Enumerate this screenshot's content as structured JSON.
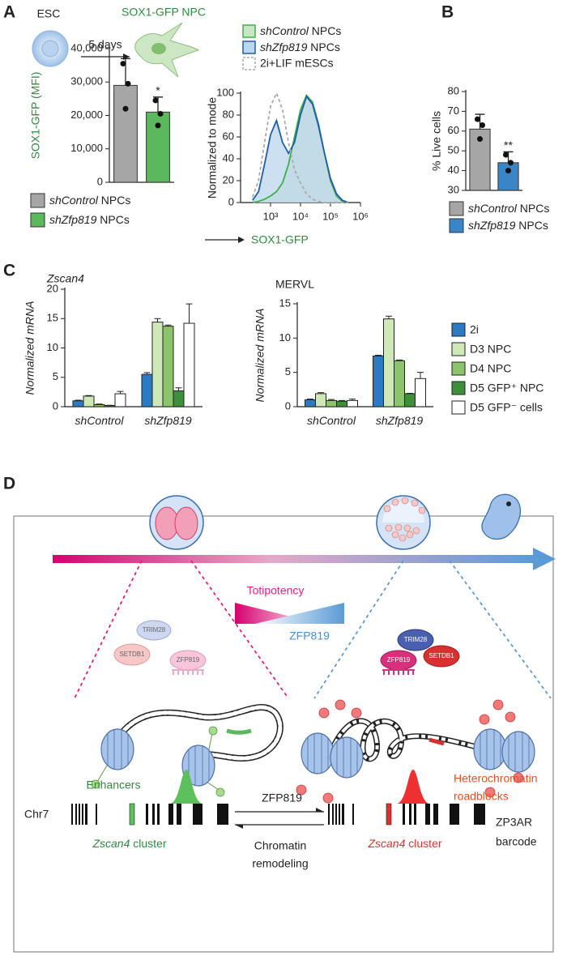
{
  "panel_labels": [
    "A",
    "B",
    "C",
    "D"
  ],
  "schematic": {
    "from": "ESC",
    "step": "5 days",
    "to": "SOX1-GFP NPC"
  },
  "chart_data": [
    {
      "type": "bar",
      "ylabel": "SOX1-GFP (MFI)",
      "ylabel_color": "#2e8b3e",
      "categories": [
        "shControl NPCs",
        "shZfp819 NPCs"
      ],
      "values": [
        29000,
        21000
      ],
      "errors": [
        8000,
        4500
      ],
      "points": [
        [
          35500,
          29500,
          22000
        ],
        [
          24500,
          20500,
          17000
        ]
      ],
      "colors": [
        "#a6a6a6",
        "#5cb85c"
      ],
      "significance": [
        null,
        "*"
      ],
      "ylim": [
        0,
        40000
      ],
      "yticks": [
        0,
        {
          "value": 10000,
          "label": "10,000"
        },
        {
          "value": 20000,
          "label": "20,000"
        },
        {
          "value": 30000,
          "label": "30,000"
        },
        {
          "value": 40000,
          "label": "40,000"
        }
      ]
    },
    {
      "type": "line",
      "ylabel": "Normalized to mode",
      "xlabel": "SOX1-GFP",
      "xlabel_color": "#2e8b3e",
      "xscale": "log",
      "x": [
        251,
        398,
        631,
        1000,
        1585,
        2512,
        3981,
        6310,
        10000,
        15849,
        25119,
        39811,
        63096,
        100000,
        158489,
        251189,
        398107
      ],
      "series": [
        {
          "name": "shControl NPCs",
          "color": "#3cb04a",
          "fill": "#c8e6c0",
          "dash": false,
          "values": [
            0,
            1,
            3,
            6,
            10,
            18,
            35,
            60,
            85,
            98,
            92,
            72,
            45,
            20,
            6,
            1,
            0
          ]
        },
        {
          "name": "shZfp819 NPCs",
          "color": "#1f5fa8",
          "fill": "#bcd6ee",
          "dash": false,
          "values": [
            2,
            10,
            35,
            62,
            75,
            55,
            45,
            55,
            80,
            97,
            90,
            70,
            45,
            22,
            8,
            2,
            0
          ]
        },
        {
          "name": "2i+LIF mESCs",
          "color": "#aaaaaa",
          "fill": "none",
          "dash": true,
          "values": [
            5,
            20,
            55,
            88,
            100,
            85,
            55,
            30,
            18,
            8,
            3,
            1,
            0,
            0,
            0,
            0,
            0
          ]
        }
      ],
      "xlim": [
        100,
        1000000
      ],
      "xticks": [
        {
          "value": 1000,
          "label": "10³"
        },
        {
          "value": 10000,
          "label": "10⁴"
        },
        {
          "value": 100000,
          "label": "10⁵"
        },
        {
          "value": 1000000,
          "label": "10⁶"
        }
      ],
      "ylim": [
        0,
        100
      ],
      "yticks": [
        0,
        20,
        40,
        60,
        80,
        100
      ]
    },
    {
      "type": "bar",
      "ylabel": "% Live cells",
      "ylabel_color": "#222222",
      "categories": [
        "shControl NPCs",
        "shZfp819 NPCs"
      ],
      "values": [
        61,
        44
      ],
      "errors": [
        7.5,
        5.5
      ],
      "points": [
        [
          66,
          63,
          56
        ],
        [
          48,
          44,
          40
        ]
      ],
      "colors": [
        "#a6a6a6",
        "#3a85c8"
      ],
      "significance": [
        null,
        "**"
      ],
      "ylim": [
        30,
        80
      ],
      "yticks": [
        30,
        40,
        50,
        60,
        70,
        80
      ]
    },
    {
      "type": "grouped_bar",
      "title": "Zscan4",
      "title_italic": true,
      "ylabel": "Normalized mRNA",
      "categories": [
        "shControl",
        "shZfp819"
      ],
      "series": [
        {
          "name": "2i",
          "color": "#2b7bc4",
          "values": [
            1.0,
            5.5
          ],
          "errors": [
            0.1,
            0.3
          ]
        },
        {
          "name": "D3 NPC",
          "color": "#cfe8b8",
          "values": [
            1.8,
            14.4
          ],
          "errors": [
            0.1,
            0.6
          ]
        },
        {
          "name": "D4 NPC",
          "color": "#8cc46c",
          "values": [
            0.35,
            13.7
          ],
          "errors": [
            0.1,
            0.2
          ]
        },
        {
          "name": "D5 GFP⁺ NPC",
          "color": "#3d8f3a",
          "values": [
            0.2,
            2.7
          ],
          "errors": [
            0.05,
            0.5
          ]
        },
        {
          "name": "D5 GFP⁻ cells",
          "color": "#ffffff",
          "values": [
            2.2,
            14.2
          ],
          "errors": [
            0.4,
            3.3
          ]
        }
      ],
      "ylim": [
        0,
        20
      ],
      "yticks": [
        0,
        5,
        10,
        15,
        20
      ],
      "legend": false
    },
    {
      "type": "grouped_bar",
      "title": "MERVL",
      "title_italic": false,
      "ylabel": "Normalized mRNA",
      "categories": [
        "shControl",
        "shZfp819"
      ],
      "series": [
        {
          "name": "2i",
          "color": "#2b7bc4",
          "values": [
            1.0,
            7.4
          ],
          "errors": [
            0.1,
            0.1
          ]
        },
        {
          "name": "D3 NPC",
          "color": "#cfe8b8",
          "values": [
            1.9,
            12.8
          ],
          "errors": [
            0.15,
            0.4
          ]
        },
        {
          "name": "D4 NPC",
          "color": "#8cc46c",
          "values": [
            0.9,
            6.7
          ],
          "errors": [
            0.15,
            0.1
          ]
        },
        {
          "name": "D5 GFP⁺ NPC",
          "color": "#3d8f3a",
          "values": [
            0.8,
            1.9
          ],
          "errors": [
            0.1,
            0.05
          ]
        },
        {
          "name": "D5 GFP⁻ cells",
          "color": "#ffffff",
          "values": [
            0.9,
            4.1
          ],
          "errors": [
            0.2,
            0.9
          ]
        }
      ],
      "ylim": [
        0,
        15
      ],
      "yticks": [
        0,
        5,
        10,
        15
      ],
      "legend": true
    }
  ],
  "diagram": {
    "totipotency": "Totipotency",
    "zfp819_gradient": "ZFP819",
    "proteins_left": {
      "trim28": "TRIM28",
      "setdb1": "SETDB1",
      "zfp819": "ZFP819"
    },
    "proteins_right": {
      "trim28": "TRIM28",
      "setdb1": "SETDB1",
      "zfp819": "ZFP819"
    },
    "enhancers": "Enhancers",
    "heterochromatin": [
      "Heterochromatin",
      "roadblocks"
    ],
    "chromosome": "Chr7",
    "cluster_left": "Zscan4 cluster",
    "cluster_right": "Zscan4 cluster",
    "arrow_forward": "ZFP819",
    "arrow_back": [
      "Chromatin",
      "remodeling"
    ],
    "barcode": [
      "ZP3AR",
      "barcode"
    ]
  }
}
